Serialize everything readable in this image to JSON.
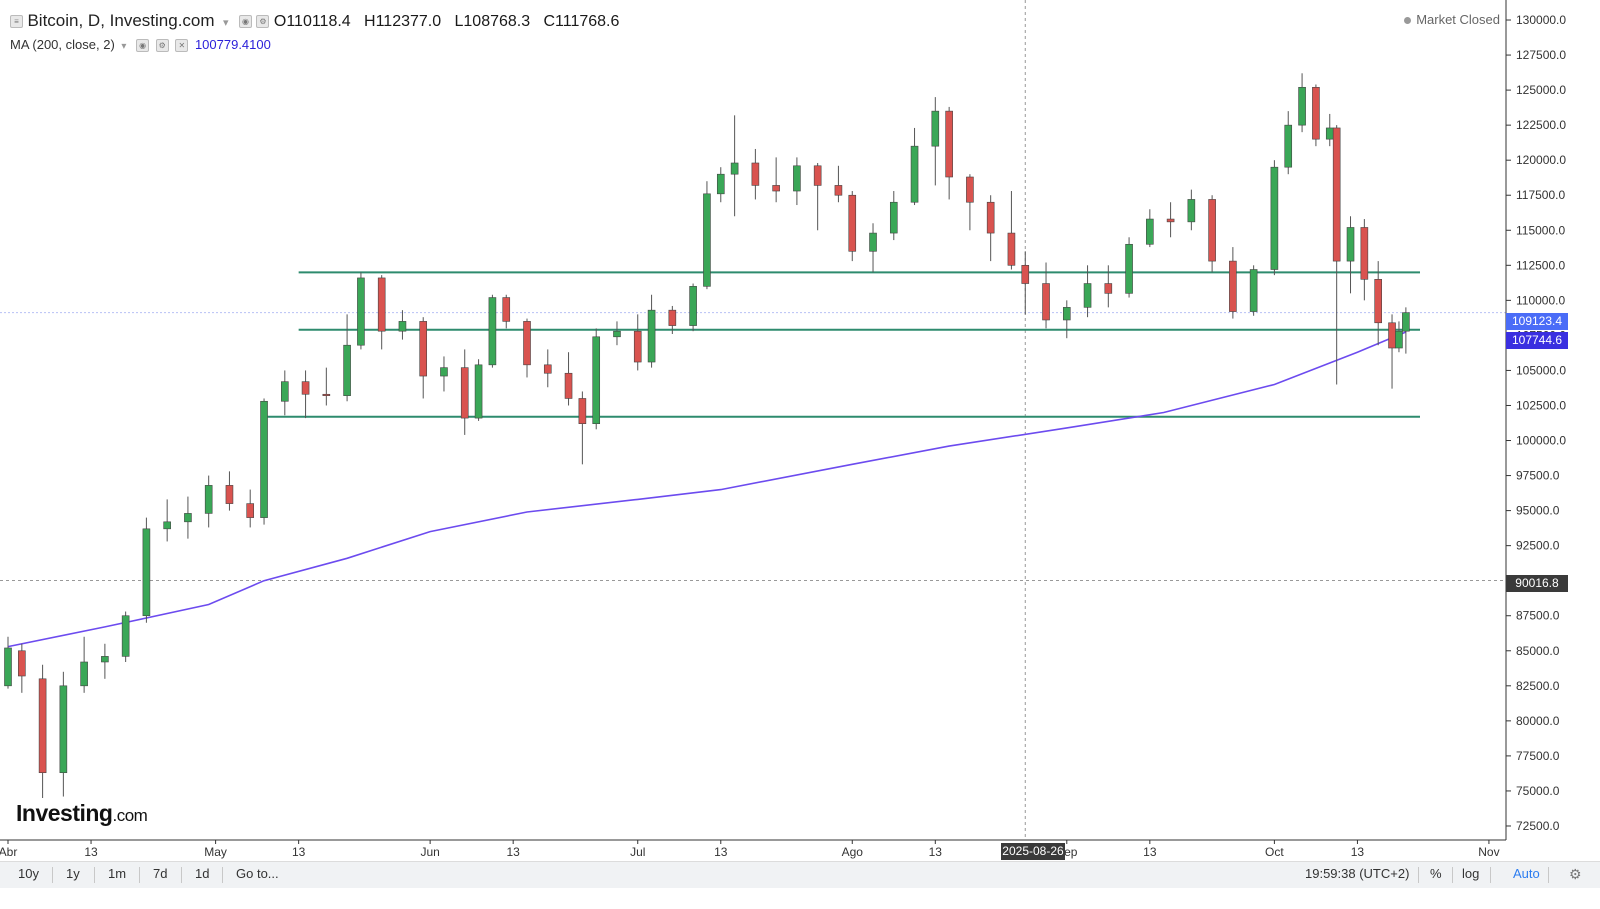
{
  "header": {
    "title": "Bitcoin, D, Investing.com",
    "open_label": "O",
    "open": "110118.4",
    "high_label": "H",
    "high": "112377.0",
    "low_label": "L",
    "low": "108768.3",
    "close_label": "C",
    "close": "111768.6"
  },
  "indicator": {
    "label": "MA (200, close, 2)",
    "value": "100779.4100"
  },
  "status": "Market Closed",
  "logo": {
    "main": "Investing",
    "suffix": ".com"
  },
  "price_tags": {
    "last": "109123.4",
    "ma": "107744.6",
    "crosshair": "90016.8",
    "crosshair_date": "2025-08-26"
  },
  "toolbar": {
    "ranges": [
      "10y",
      "1y",
      "1m",
      "7d",
      "1d"
    ],
    "goto": "Go to...",
    "clock": "19:59:38 (UTC+2)",
    "percent": "%",
    "log": "log",
    "auto": "Auto"
  },
  "colors": {
    "up": "#3aa757",
    "down": "#d9534f",
    "ma": "#6c4bef",
    "sr": "#2e8b6e",
    "accent": "#4a6cf7"
  },
  "chart_data": {
    "type": "candlestick",
    "x_axis_labels": [
      "Abr",
      "13",
      "May",
      "13",
      "Jun",
      "13",
      "Jul",
      "13",
      "Ago",
      "13",
      "Sep",
      "13",
      "Oct",
      "13",
      "Nov"
    ],
    "y_ticks": [
      72500,
      75000,
      77500,
      80000,
      82500,
      85000,
      87500,
      90000,
      92500,
      95000,
      97500,
      100000,
      102500,
      105000,
      107500,
      110000,
      112500,
      115000,
      117500,
      120000,
      122500,
      125000,
      127500,
      130000
    ],
    "ylim": [
      71500,
      131000
    ],
    "x_range": [
      "2025-04-01",
      "2025-10-31"
    ],
    "horizontal_lines": [
      112000,
      107900,
      101700
    ],
    "series": [
      {
        "name": "Bitcoin",
        "candles": [
          {
            "date": "2025-04-01",
            "o": 82500,
            "h": 86000,
            "l": 82300,
            "c": 85200
          },
          {
            "date": "2025-04-03",
            "o": 85000,
            "h": 85500,
            "l": 82000,
            "c": 83200
          },
          {
            "date": "2025-04-06",
            "o": 83000,
            "h": 84000,
            "l": 74500,
            "c": 76300
          },
          {
            "date": "2025-04-09",
            "o": 76300,
            "h": 83500,
            "l": 74600,
            "c": 82500
          },
          {
            "date": "2025-04-12",
            "o": 82500,
            "h": 86000,
            "l": 82000,
            "c": 84200
          },
          {
            "date": "2025-04-15",
            "o": 84200,
            "h": 85500,
            "l": 83000,
            "c": 84600
          },
          {
            "date": "2025-04-18",
            "o": 84600,
            "h": 87800,
            "l": 84200,
            "c": 87500
          },
          {
            "date": "2025-04-21",
            "o": 87500,
            "h": 94500,
            "l": 87000,
            "c": 93700
          },
          {
            "date": "2025-04-24",
            "o": 93700,
            "h": 95800,
            "l": 92800,
            "c": 94200
          },
          {
            "date": "2025-04-27",
            "o": 94200,
            "h": 96000,
            "l": 93000,
            "c": 94800
          },
          {
            "date": "2025-04-30",
            "o": 94800,
            "h": 97500,
            "l": 93800,
            "c": 96800
          },
          {
            "date": "2025-05-03",
            "o": 96800,
            "h": 97800,
            "l": 95000,
            "c": 95500
          },
          {
            "date": "2025-05-06",
            "o": 95500,
            "h": 96500,
            "l": 93800,
            "c": 94500
          },
          {
            "date": "2025-05-08",
            "o": 94500,
            "h": 103000,
            "l": 94000,
            "c": 102800
          },
          {
            "date": "2025-05-11",
            "o": 102800,
            "h": 105000,
            "l": 101800,
            "c": 104200
          },
          {
            "date": "2025-05-14",
            "o": 104200,
            "h": 105000,
            "l": 101600,
            "c": 103300
          },
          {
            "date": "2025-05-17",
            "o": 103300,
            "h": 105200,
            "l": 102500,
            "c": 103200
          },
          {
            "date": "2025-05-20",
            "o": 103200,
            "h": 109000,
            "l": 102800,
            "c": 106800
          },
          {
            "date": "2025-05-22",
            "o": 106800,
            "h": 112000,
            "l": 106500,
            "c": 111600
          },
          {
            "date": "2025-05-25",
            "o": 111600,
            "h": 111800,
            "l": 106500,
            "c": 107800
          },
          {
            "date": "2025-05-28",
            "o": 107800,
            "h": 109300,
            "l": 107200,
            "c": 108500
          },
          {
            "date": "2025-05-31",
            "o": 108500,
            "h": 108800,
            "l": 103000,
            "c": 104600
          },
          {
            "date": "2025-06-03",
            "o": 104600,
            "h": 106000,
            "l": 103500,
            "c": 105200
          },
          {
            "date": "2025-06-06",
            "o": 105200,
            "h": 106500,
            "l": 100400,
            "c": 101600
          },
          {
            "date": "2025-06-08",
            "o": 101600,
            "h": 105800,
            "l": 101400,
            "c": 105400
          },
          {
            "date": "2025-06-10",
            "o": 105400,
            "h": 110400,
            "l": 105200,
            "c": 110200
          },
          {
            "date": "2025-06-12",
            "o": 110200,
            "h": 110400,
            "l": 108000,
            "c": 108500
          },
          {
            "date": "2025-06-15",
            "o": 108500,
            "h": 108700,
            "l": 104500,
            "c": 105400
          },
          {
            "date": "2025-06-18",
            "o": 105400,
            "h": 106500,
            "l": 103800,
            "c": 104800
          },
          {
            "date": "2025-06-21",
            "o": 104800,
            "h": 106300,
            "l": 102500,
            "c": 103000
          },
          {
            "date": "2025-06-23",
            "o": 103000,
            "h": 103500,
            "l": 98300,
            "c": 101200
          },
          {
            "date": "2025-06-25",
            "o": 101200,
            "h": 108000,
            "l": 100800,
            "c": 107400
          },
          {
            "date": "2025-06-28",
            "o": 107400,
            "h": 108500,
            "l": 106800,
            "c": 107800
          },
          {
            "date": "2025-07-01",
            "o": 107800,
            "h": 109000,
            "l": 105000,
            "c": 105600
          },
          {
            "date": "2025-07-03",
            "o": 105600,
            "h": 110400,
            "l": 105200,
            "c": 109300
          },
          {
            "date": "2025-07-06",
            "o": 109300,
            "h": 109600,
            "l": 107600,
            "c": 108200
          },
          {
            "date": "2025-07-09",
            "o": 108200,
            "h": 111200,
            "l": 107800,
            "c": 111000
          },
          {
            "date": "2025-07-11",
            "o": 111000,
            "h": 118500,
            "l": 110800,
            "c": 117600
          },
          {
            "date": "2025-07-13",
            "o": 117600,
            "h": 119500,
            "l": 117000,
            "c": 119000
          },
          {
            "date": "2025-07-15",
            "o": 119000,
            "h": 123200,
            "l": 116000,
            "c": 119800
          },
          {
            "date": "2025-07-18",
            "o": 119800,
            "h": 120800,
            "l": 117200,
            "c": 118200
          },
          {
            "date": "2025-07-21",
            "o": 118200,
            "h": 120200,
            "l": 117000,
            "c": 117800
          },
          {
            "date": "2025-07-24",
            "o": 117800,
            "h": 120200,
            "l": 116800,
            "c": 119600
          },
          {
            "date": "2025-07-27",
            "o": 119600,
            "h": 119800,
            "l": 115000,
            "c": 118200
          },
          {
            "date": "2025-07-30",
            "o": 118200,
            "h": 119600,
            "l": 117000,
            "c": 117500
          },
          {
            "date": "2025-08-01",
            "o": 117500,
            "h": 117800,
            "l": 112800,
            "c": 113500
          },
          {
            "date": "2025-08-04",
            "o": 113500,
            "h": 115500,
            "l": 112000,
            "c": 114800
          },
          {
            "date": "2025-08-07",
            "o": 114800,
            "h": 117800,
            "l": 114300,
            "c": 117000
          },
          {
            "date": "2025-08-10",
            "o": 117000,
            "h": 122300,
            "l": 116800,
            "c": 121000
          },
          {
            "date": "2025-08-13",
            "o": 121000,
            "h": 124500,
            "l": 118200,
            "c": 123500
          },
          {
            "date": "2025-08-15",
            "o": 123500,
            "h": 123800,
            "l": 117200,
            "c": 118800
          },
          {
            "date": "2025-08-18",
            "o": 118800,
            "h": 119000,
            "l": 115000,
            "c": 117000
          },
          {
            "date": "2025-08-21",
            "o": 117000,
            "h": 117500,
            "l": 112800,
            "c": 114800
          },
          {
            "date": "2025-08-24",
            "o": 114800,
            "h": 117800,
            "l": 112200,
            "c": 112500
          },
          {
            "date": "2025-08-26",
            "o": 112500,
            "h": 113500,
            "l": 109000,
            "c": 111200
          },
          {
            "date": "2025-08-29",
            "o": 111200,
            "h": 112700,
            "l": 108000,
            "c": 108600
          },
          {
            "date": "2025-09-01",
            "o": 108600,
            "h": 110000,
            "l": 107300,
            "c": 109500
          },
          {
            "date": "2025-09-04",
            "o": 109500,
            "h": 112500,
            "l": 108800,
            "c": 111200
          },
          {
            "date": "2025-09-07",
            "o": 111200,
            "h": 112500,
            "l": 109500,
            "c": 110500
          },
          {
            "date": "2025-09-10",
            "o": 110500,
            "h": 114500,
            "l": 110200,
            "c": 114000
          },
          {
            "date": "2025-09-13",
            "o": 114000,
            "h": 116500,
            "l": 113800,
            "c": 115800
          },
          {
            "date": "2025-09-16",
            "o": 115800,
            "h": 117000,
            "l": 114500,
            "c": 115600
          },
          {
            "date": "2025-09-19",
            "o": 115600,
            "h": 117900,
            "l": 115000,
            "c": 117200
          },
          {
            "date": "2025-09-22",
            "o": 117200,
            "h": 117500,
            "l": 112000,
            "c": 112800
          },
          {
            "date": "2025-09-25",
            "o": 112800,
            "h": 113800,
            "l": 108700,
            "c": 109200
          },
          {
            "date": "2025-09-28",
            "o": 109200,
            "h": 112500,
            "l": 108900,
            "c": 112200
          },
          {
            "date": "2025-10-01",
            "o": 112200,
            "h": 120000,
            "l": 111800,
            "c": 119500
          },
          {
            "date": "2025-10-03",
            "o": 119500,
            "h": 123500,
            "l": 119000,
            "c": 122500
          },
          {
            "date": "2025-10-05",
            "o": 122500,
            "h": 126200,
            "l": 122000,
            "c": 125200
          },
          {
            "date": "2025-10-07",
            "o": 125200,
            "h": 125400,
            "l": 121000,
            "c": 121500
          },
          {
            "date": "2025-10-09",
            "o": 121500,
            "h": 123300,
            "l": 121000,
            "c": 122300
          },
          {
            "date": "2025-10-10",
            "o": 122300,
            "h": 122500,
            "l": 104000,
            "c": 112800
          },
          {
            "date": "2025-10-12",
            "o": 112800,
            "h": 116000,
            "l": 110500,
            "c": 115200
          },
          {
            "date": "2025-10-14",
            "o": 115200,
            "h": 115800,
            "l": 110000,
            "c": 111500
          },
          {
            "date": "2025-10-16",
            "o": 111500,
            "h": 112800,
            "l": 106800,
            "c": 108400
          },
          {
            "date": "2025-10-18",
            "o": 108400,
            "h": 109000,
            "l": 103700,
            "c": 106600
          },
          {
            "date": "2025-10-19",
            "o": 106600,
            "h": 108500,
            "l": 106300,
            "c": 107800
          },
          {
            "date": "2025-10-20",
            "o": 107800,
            "h": 109500,
            "l": 106200,
            "c": 109123
          }
        ]
      },
      {
        "name": "MA (200, close, 2)",
        "points": [
          {
            "date": "2025-04-01",
            "v": 85300
          },
          {
            "date": "2025-04-15",
            "v": 86700
          },
          {
            "date": "2025-04-30",
            "v": 88300
          },
          {
            "date": "2025-05-08",
            "v": 90000
          },
          {
            "date": "2025-05-20",
            "v": 91600
          },
          {
            "date": "2025-06-01",
            "v": 93500
          },
          {
            "date": "2025-06-15",
            "v": 94900
          },
          {
            "date": "2025-07-01",
            "v": 95800
          },
          {
            "date": "2025-07-13",
            "v": 96500
          },
          {
            "date": "2025-08-01",
            "v": 98300
          },
          {
            "date": "2025-08-15",
            "v": 99600
          },
          {
            "date": "2025-09-01",
            "v": 100900
          },
          {
            "date": "2025-09-15",
            "v": 102000
          },
          {
            "date": "2025-10-01",
            "v": 104000
          },
          {
            "date": "2025-10-13",
            "v": 106300
          },
          {
            "date": "2025-10-20",
            "v": 107744.6
          }
        ]
      }
    ]
  }
}
